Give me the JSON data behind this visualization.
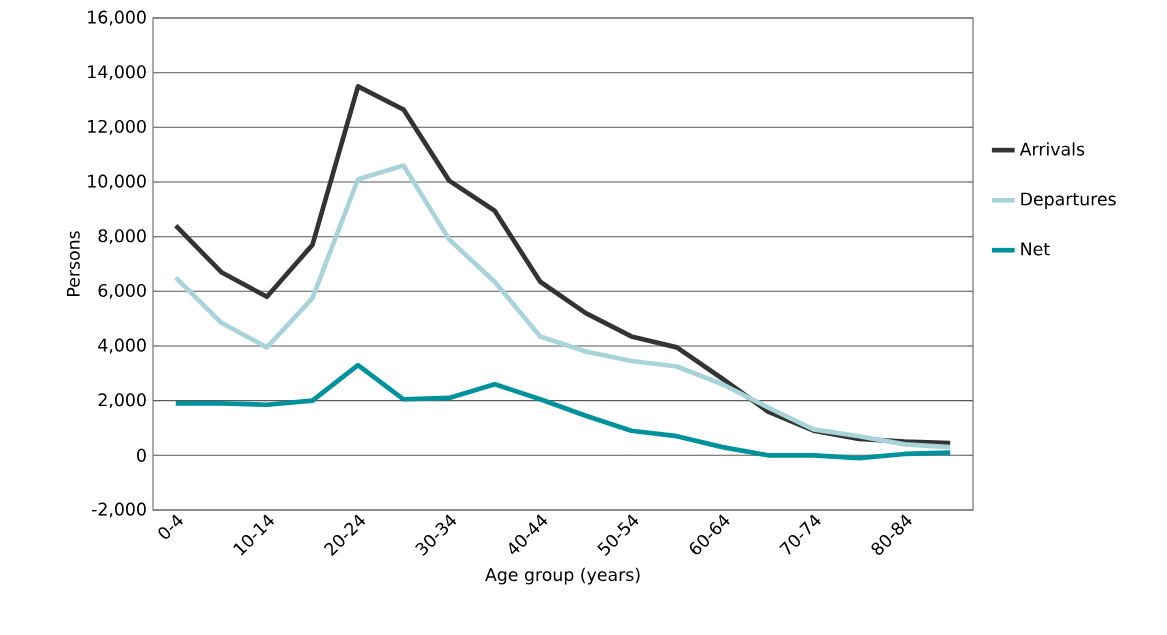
{
  "chart_data": {
    "type": "line",
    "xlabel": "Age group (years)",
    "ylabel": "Persons",
    "categories": [
      "0-4",
      null,
      "10-14",
      null,
      "20-24",
      null,
      "30-34",
      null,
      "40-44",
      null,
      "50-54",
      null,
      "60-64",
      null,
      "70-74",
      null,
      "80-84",
      null
    ],
    "series": [
      {
        "name": "Arrivals",
        "color": "#333333",
        "values": [
          8400,
          6700,
          5800,
          7700,
          13500,
          12650,
          10050,
          8950,
          6350,
          5200,
          4350,
          3950,
          2800,
          1600,
          900,
          600,
          500,
          450
        ]
      },
      {
        "name": "Departures",
        "color": "#a8d4d9",
        "values": [
          6500,
          4850,
          3950,
          5750,
          10100,
          10600,
          7900,
          6350,
          4350,
          3800,
          3450,
          3250,
          2600,
          1750,
          950,
          700,
          400,
          300
        ]
      },
      {
        "name": "Net",
        "color": "#00929c",
        "values": [
          1900,
          1900,
          1850,
          2000,
          3300,
          2050,
          2100,
          2600,
          2050,
          1450,
          900,
          700,
          300,
          0,
          0,
          -100,
          50,
          100
        ]
      }
    ],
    "ylim": [
      -2000,
      16000
    ],
    "yticks": [
      {
        "value": -2000,
        "label": "-2,000"
      },
      0,
      {
        "value": 2000,
        "label": "2,000"
      },
      {
        "value": 4000,
        "label": "4,000"
      },
      {
        "value": 6000,
        "label": "6,000"
      },
      {
        "value": 8000,
        "label": "8,000"
      },
      {
        "value": 10000,
        "label": "10,000"
      },
      {
        "value": 12000,
        "label": "12,000"
      },
      {
        "value": 14000,
        "label": "14,000"
      },
      {
        "value": 16000,
        "label": "16,000"
      }
    ],
    "grid": "y",
    "legend": "right",
    "marker": "none",
    "line_style": "solid"
  }
}
